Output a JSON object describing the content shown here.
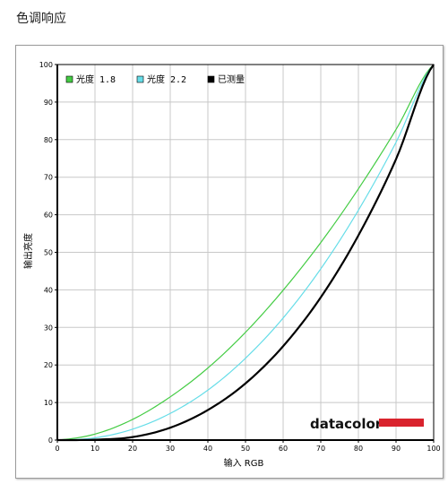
{
  "page": {
    "title": "色调响应"
  },
  "chart_data": {
    "type": "line",
    "xlabel": "输入 RGB",
    "ylabel": "输出亮度",
    "xlim": [
      0,
      100
    ],
    "ylim": [
      0,
      100
    ],
    "xticks": [
      0,
      10,
      20,
      30,
      40,
      50,
      60,
      70,
      80,
      90,
      100
    ],
    "yticks": [
      0,
      10,
      20,
      30,
      40,
      50,
      60,
      70,
      80,
      90,
      100
    ],
    "grid": true,
    "legend_position": "top-left",
    "x": [
      0,
      10,
      20,
      30,
      40,
      50,
      60,
      70,
      80,
      90,
      100
    ],
    "series": [
      {
        "name": "光度 1.8",
        "color": "#44cc44",
        "values": [
          0,
          1.6,
          5.5,
          11.5,
          19.2,
          28.7,
          39.9,
          52.6,
          66.9,
          82.7,
          100
        ]
      },
      {
        "name": "光度 2.2",
        "color": "#66dde8",
        "values": [
          0,
          0.6,
          2.9,
          7.1,
          13.3,
          21.8,
          32.5,
          45.6,
          61.2,
          79.3,
          100
        ]
      },
      {
        "name": "已测量",
        "color": "#000000",
        "values": [
          0,
          0.1,
          0.8,
          3.3,
          8.0,
          15.1,
          25.0,
          38.0,
          54.5,
          74.8,
          100
        ]
      }
    ]
  },
  "branding": {
    "logo_text": "datacolor",
    "logo_bar_color": "#d9232d"
  }
}
